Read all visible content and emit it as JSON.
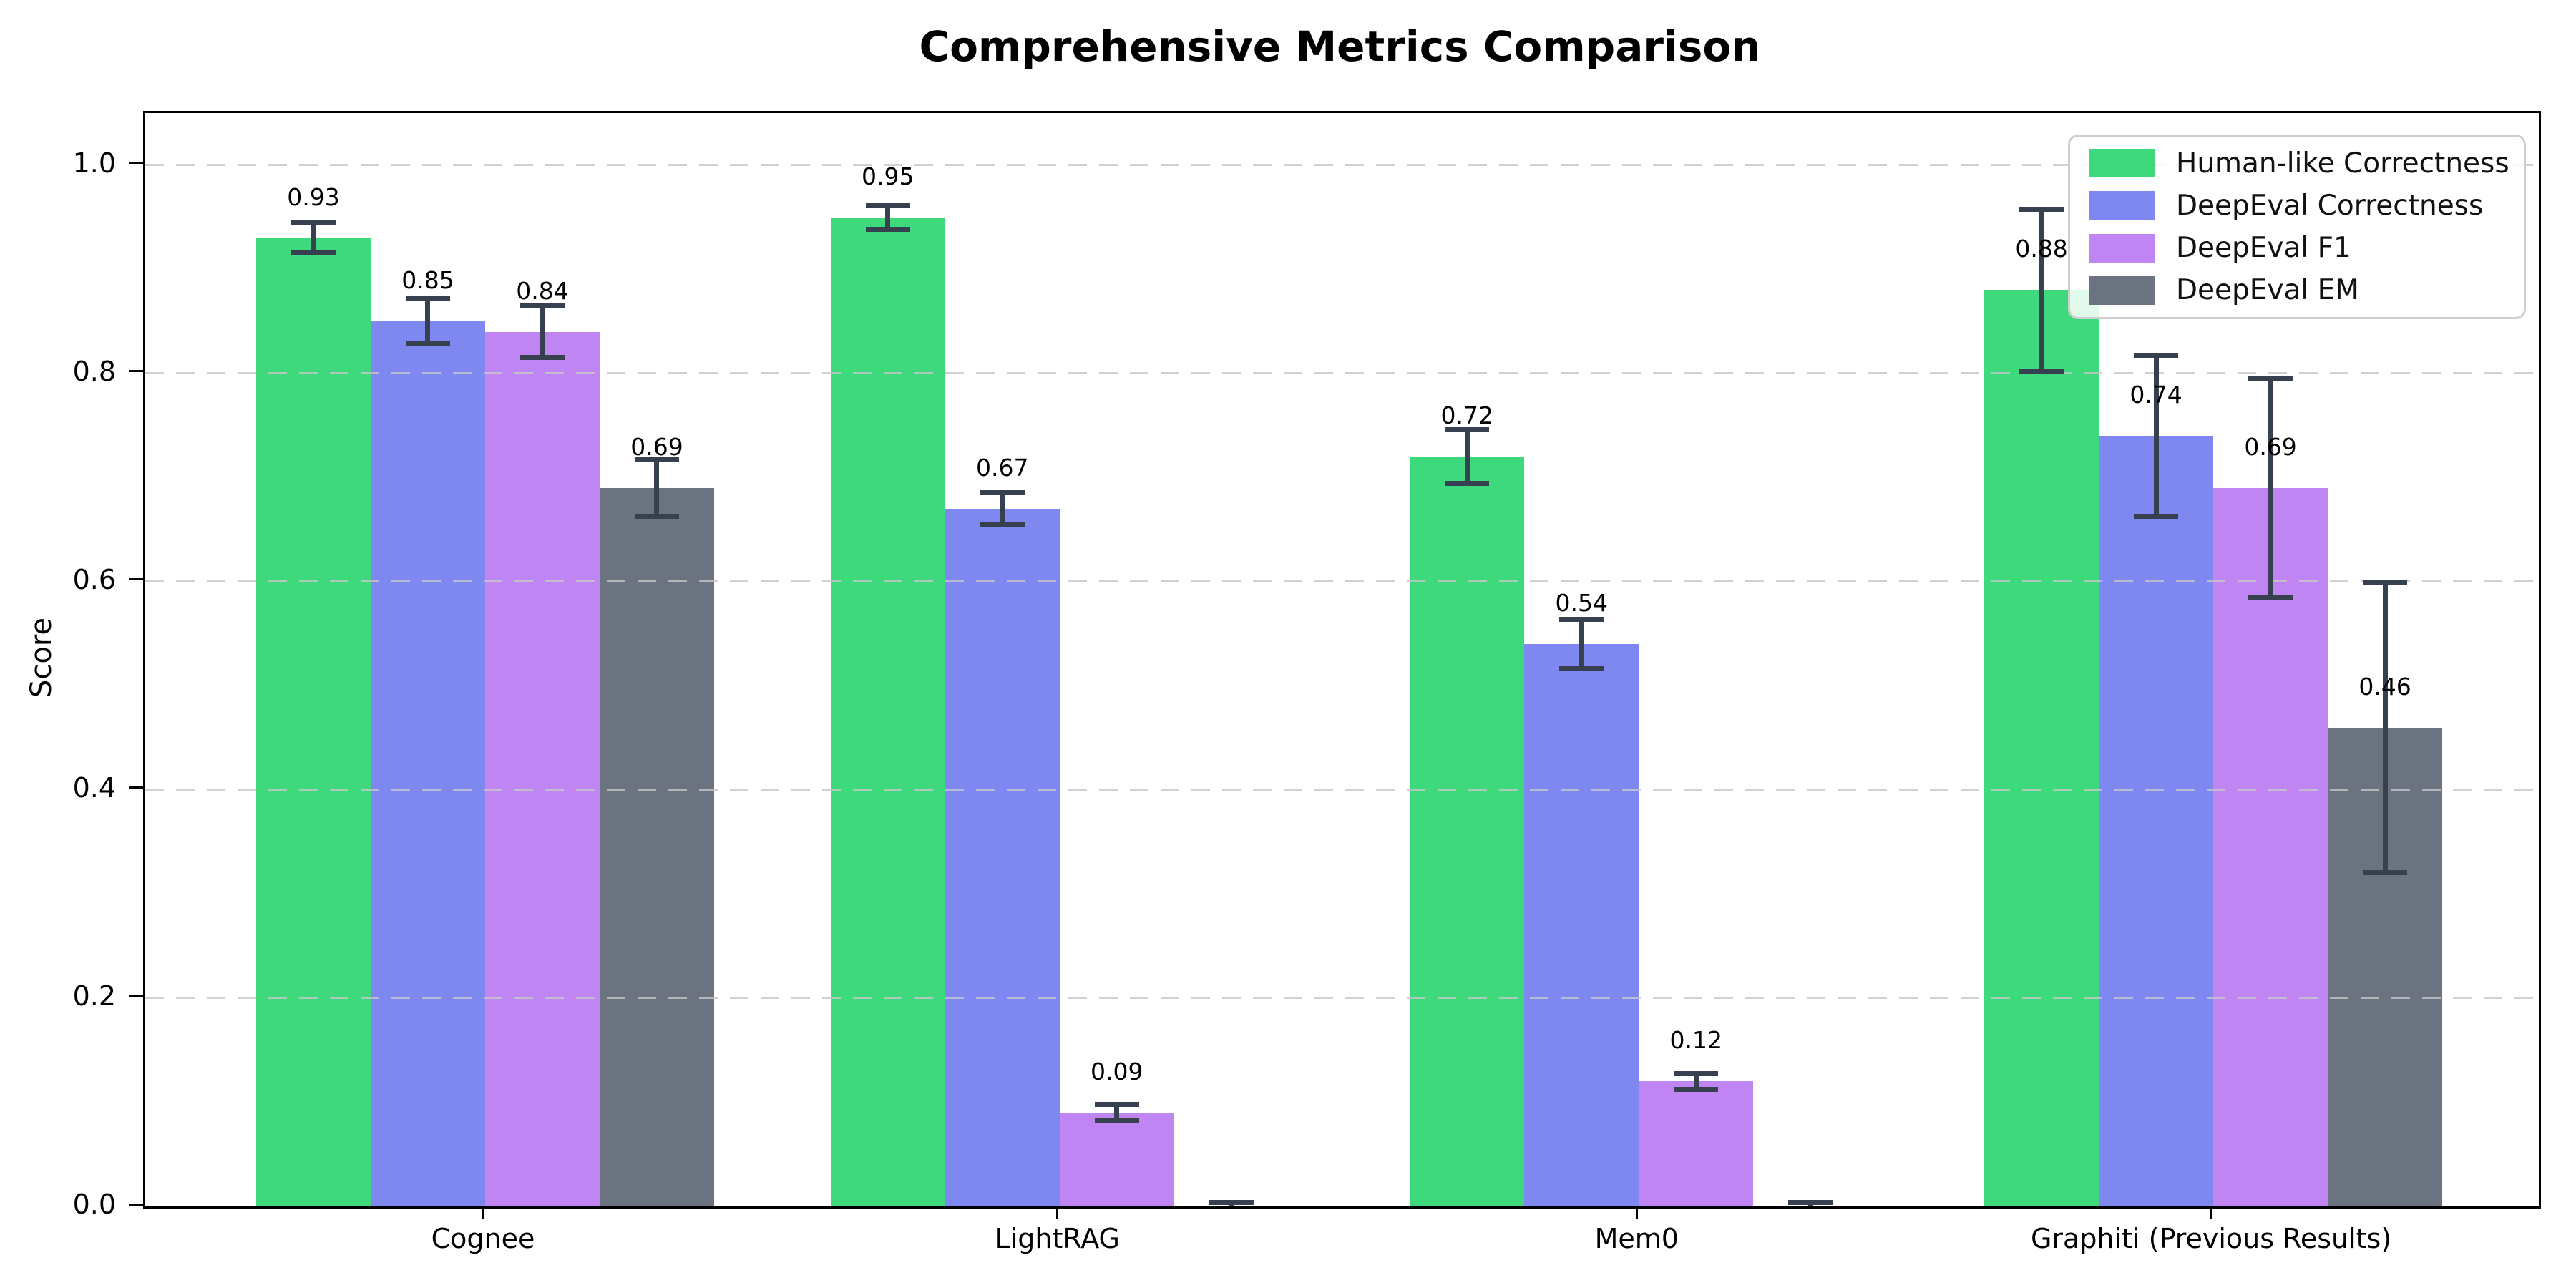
{
  "chart_data": {
    "type": "bar",
    "title": "Comprehensive Metrics Comparison",
    "ylabel": "Score",
    "xlabel": "",
    "categories": [
      "Cognee",
      "LightRAG",
      "Mem0",
      "Graphiti (Previous Results)"
    ],
    "series": [
      {
        "name": "Human-like Correctness",
        "color": "#3fd97d",
        "values": [
          0.93,
          0.95,
          0.72,
          0.88
        ],
        "errors": [
          0.015,
          0.012,
          0.026,
          0.078
        ],
        "bar_labels": [
          "0.93",
          "0.95",
          "0.72",
          "0.88"
        ]
      },
      {
        "name": "DeepEval Correctness",
        "color": "#7e88f0",
        "values": [
          0.85,
          0.67,
          0.54,
          0.74
        ],
        "errors": [
          0.022,
          0.016,
          0.024,
          0.078
        ],
        "bar_labels": [
          "0.85",
          "0.67",
          "0.54",
          "0.74"
        ]
      },
      {
        "name": "DeepEval F1",
        "color": "#bf85f3",
        "values": [
          0.84,
          0.09,
          0.12,
          0.69
        ],
        "errors": [
          0.025,
          0.008,
          0.008,
          0.105
        ],
        "bar_labels": [
          "0.84",
          "0.09",
          "0.12",
          "0.69"
        ]
      },
      {
        "name": "DeepEval EM",
        "color": "#6b7380",
        "values": [
          0.69,
          0.0,
          0.0,
          0.46
        ],
        "errors": [
          0.028,
          0.004,
          0.004,
          0.14
        ],
        "bar_labels": [
          "0.69",
          "",
          "",
          "0.46"
        ]
      }
    ],
    "y_ticks": [
      {
        "value": 0.0,
        "label": "0.0"
      },
      {
        "value": 0.2,
        "label": "0.2"
      },
      {
        "value": 0.4,
        "label": "0.4"
      },
      {
        "value": 0.6,
        "label": "0.6"
      },
      {
        "value": 0.8,
        "label": "0.8"
      },
      {
        "value": 1.0,
        "label": "1.0"
      }
    ],
    "ylim": [
      0,
      1.05
    ],
    "grid": {
      "axis": "y",
      "style": "dashed",
      "color": "#c7c7c7"
    },
    "legend": {
      "position": "upper right",
      "entries": [
        "Human-like Correctness",
        "DeepEval Correctness",
        "DeepEval F1",
        "DeepEval EM"
      ]
    },
    "error_bar_color": "#36404e"
  }
}
